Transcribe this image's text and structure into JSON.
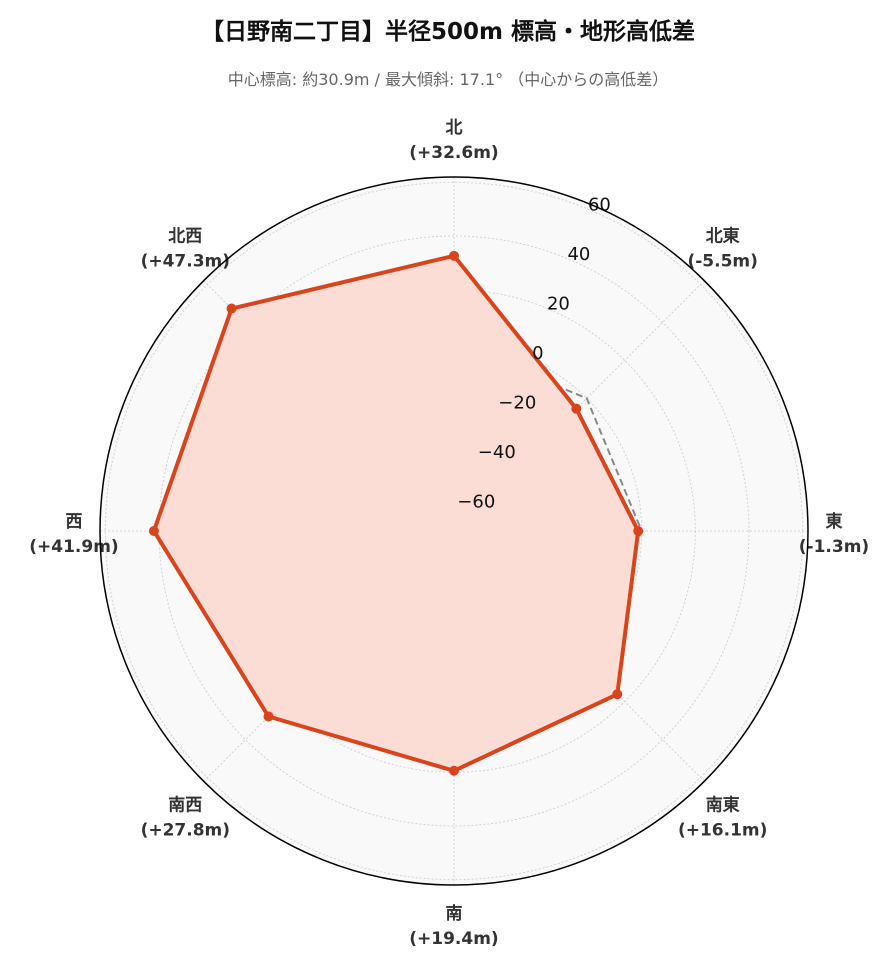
{
  "chart_data": {
    "type": "radar",
    "title": "【日野南二丁目】半径500m 標高・地形高低差",
    "subtitle": "中心標高: 約30.9m / 最大傾斜: 17.1° （中心からの高低差）",
    "categories": [
      "北",
      "北東",
      "東",
      "南東",
      "南",
      "南西",
      "西",
      "北西"
    ],
    "category_value_labels": [
      "(+32.6m)",
      "(-5.5m)",
      "(-1.3m)",
      "(+16.1m)",
      "(+19.4m)",
      "(+27.8m)",
      "(+41.9m)",
      "(+47.3m)"
    ],
    "series": [
      {
        "values": [
          32.6,
          -5.5,
          -1.3,
          16.1,
          19.4,
          27.8,
          41.9,
          47.3
        ],
        "color": "#d9441c",
        "fill": "#fcddd5",
        "style": "solid",
        "markers": true
      },
      {
        "values": [
          0,
          0,
          0,
          0,
          0,
          0,
          0,
          0
        ],
        "color": "#888888",
        "style": "dashed",
        "markers": false
      }
    ],
    "r_range": [
      -70,
      62
    ],
    "r_ticks": [
      -60,
      -40,
      -20,
      0,
      20,
      40,
      60
    ],
    "r_tick_labels": [
      "−60",
      "−40",
      "−20",
      "0",
      "20",
      "40",
      "60"
    ],
    "grid": true,
    "background": "#f9f9f9"
  }
}
